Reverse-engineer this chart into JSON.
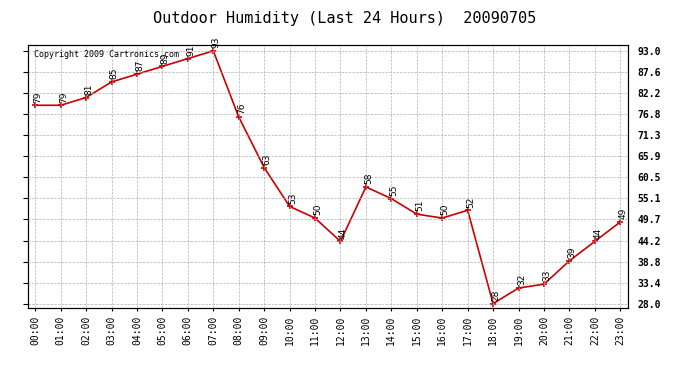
{
  "title": "Outdoor Humidity (Last 24 Hours)  20090705",
  "copyright": "Copyright 2009 Cartronics.com",
  "x_labels": [
    "00:00",
    "01:00",
    "02:00",
    "03:00",
    "04:00",
    "05:00",
    "06:00",
    "07:00",
    "08:00",
    "09:00",
    "10:00",
    "11:00",
    "12:00",
    "13:00",
    "14:00",
    "15:00",
    "16:00",
    "17:00",
    "18:00",
    "19:00",
    "20:00",
    "21:00",
    "22:00",
    "23:00"
  ],
  "x_values": [
    0,
    1,
    2,
    3,
    4,
    5,
    6,
    7,
    8,
    9,
    10,
    11,
    12,
    13,
    14,
    15,
    16,
    17,
    18,
    19,
    20,
    21,
    22,
    23
  ],
  "y_values": [
    79,
    79,
    81,
    85,
    87,
    89,
    91,
    93,
    76,
    63,
    53,
    50,
    44,
    58,
    55,
    51,
    50,
    52,
    28,
    32,
    33,
    39,
    44,
    49
  ],
  "y_labels": [
    "93.0",
    "87.6",
    "82.2",
    "76.8",
    "71.3",
    "65.9",
    "60.5",
    "55.1",
    "49.7",
    "44.2",
    "38.8",
    "33.4",
    "28.0"
  ],
  "y_ticks": [
    93.0,
    87.6,
    82.2,
    76.8,
    71.3,
    65.9,
    60.5,
    55.1,
    49.7,
    44.2,
    38.8,
    33.4,
    28.0
  ],
  "ylim": [
    27.0,
    94.5
  ],
  "xlim": [
    -0.3,
    23.3
  ],
  "line_color": "#cc0000",
  "marker_color": "#cc0000",
  "bg_color": "#ffffff",
  "grid_color": "#aaaaaa",
  "title_fontsize": 11,
  "annot_fontsize": 6.5,
  "tick_fontsize": 7,
  "copyright_fontsize": 6,
  "fig_width": 6.9,
  "fig_height": 3.75,
  "dpi": 100
}
